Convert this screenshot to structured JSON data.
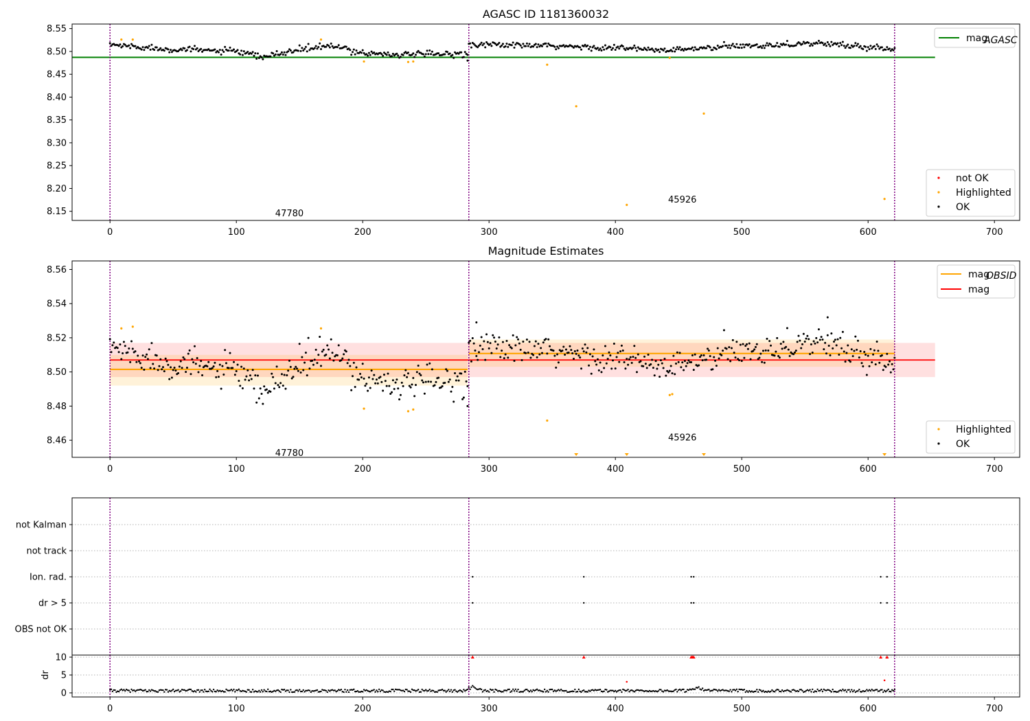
{
  "chart_data": [
    {
      "type": "scatter",
      "title": "AGASC ID 1181360032",
      "xlim": [
        -30,
        720
      ],
      "ylim": [
        8.13,
        8.56
      ],
      "x_ticks": [
        0,
        100,
        200,
        300,
        400,
        500,
        600,
        700
      ],
      "y_ticks": [
        8.15,
        8.2,
        8.25,
        8.3,
        8.35,
        8.4,
        8.45,
        8.5,
        8.55
      ],
      "y_tick_labels": [
        "8.15",
        "8.20",
        "8.25",
        "8.30",
        "8.35",
        "8.40",
        "8.45",
        "8.50",
        "8.55"
      ],
      "obsid_boundaries": [
        0,
        284,
        621
      ],
      "obsid_labels": [
        {
          "text": "47780",
          "x": 142,
          "y": 8.145
        },
        {
          "text": "45926",
          "x": 453,
          "y": 8.175
        }
      ],
      "reference_line": {
        "name": "mag_AGASC",
        "y": 8.487,
        "x_range": [
          -30,
          653
        ],
        "color": "#008000"
      },
      "series": [
        {
          "name": "not OK",
          "color": "#ff0000",
          "x": [],
          "y": []
        },
        {
          "name": "Highlighted",
          "color": "#ffa500",
          "x": [
            9,
            18,
            167,
            201,
            236,
            240,
            346,
            369,
            409,
            443,
            470,
            613
          ],
          "y": [
            8.526,
            8.526,
            8.526,
            8.478,
            8.477,
            8.478,
            8.471,
            8.38,
            8.164,
            8.486,
            8.364,
            8.177
          ]
        },
        {
          "name": "OK",
          "color": "#000000",
          "segments": [
            {
              "x_range": [
                0,
                283
              ],
              "knots_x": [
                0,
                40,
                100,
                120,
                150,
                175,
                200,
                230,
                283
              ],
              "knots_y": [
                8.515,
                8.506,
                8.5,
                8.487,
                8.504,
                8.512,
                8.497,
                8.493,
                8.495
              ]
            },
            {
              "x_range": [
                284,
                621
              ],
              "knots_x": [
                284,
                340,
                400,
                440,
                500,
                560,
                621
              ],
              "knots_y": [
                8.516,
                8.512,
                8.508,
                8.502,
                8.512,
                8.518,
                8.505
              ]
            }
          ],
          "spread": 0.006,
          "outliers": [
            {
              "x": 283,
              "y": 8.48
            }
          ]
        }
      ],
      "legend": [
        {
          "position": "top-right",
          "entries": [
            {
              "label": "mag",
              "subscript": "AGASC",
              "color": "#008000",
              "kind": "line"
            }
          ]
        },
        {
          "position": "bottom-right",
          "entries": [
            {
              "label": "not OK",
              "color": "#ff0000",
              "kind": "dot"
            },
            {
              "label": "Highlighted",
              "color": "#ffa500",
              "kind": "dot"
            },
            {
              "label": "OK",
              "color": "#000000",
              "kind": "dot"
            }
          ]
        }
      ]
    },
    {
      "type": "scatter",
      "title": "Magnitude Estimates",
      "xlim": [
        -30,
        720
      ],
      "ylim": [
        8.45,
        8.565
      ],
      "x_ticks": [
        0,
        100,
        200,
        300,
        400,
        500,
        600,
        700
      ],
      "y_ticks": [
        8.46,
        8.48,
        8.5,
        8.52,
        8.54,
        8.56
      ],
      "y_tick_labels": [
        "8.46",
        "8.48",
        "8.50",
        "8.52",
        "8.54",
        "8.56"
      ],
      "obsid_boundaries": [
        0,
        284,
        621
      ],
      "obsid_labels": [
        {
          "text": "47780",
          "x": 142,
          "y": 8.4525
        },
        {
          "text": "45926",
          "x": 453,
          "y": 8.4615
        }
      ],
      "bands": [
        {
          "x_range": [
            0,
            653
          ],
          "y_range": [
            8.497,
            8.517
          ],
          "color": "#ff0000",
          "opacity": 0.12
        },
        {
          "x_range": [
            0,
            283
          ],
          "y_range": [
            8.492,
            8.51
          ],
          "color": "#ffa500",
          "opacity": 0.15
        },
        {
          "x_range": [
            284,
            621
          ],
          "y_range": [
            8.503,
            8.519
          ],
          "color": "#ffa500",
          "opacity": 0.15
        }
      ],
      "lines": [
        {
          "name": "mag_OBSID",
          "color": "#ffa500",
          "segments": [
            {
              "x_range": [
                0,
                283
              ],
              "y": 8.5015
            },
            {
              "x_range": [
                284,
                621
              ],
              "y": 8.5108
            }
          ]
        },
        {
          "name": "mag",
          "color": "#ff0000",
          "segments": [
            {
              "x_range": [
                0,
                653
              ],
              "y": 8.507
            }
          ]
        }
      ],
      "series": [
        {
          "name": "Highlighted",
          "color": "#ffa500",
          "x": [
            9,
            18,
            167,
            201,
            236,
            240,
            346,
            443,
            445
          ],
          "y": [
            8.5255,
            8.5265,
            8.5255,
            8.4785,
            8.477,
            8.478,
            8.4715,
            8.4865,
            8.487
          ],
          "below_axis_markers_x": [
            369,
            409,
            470,
            613
          ]
        },
        {
          "name": "OK",
          "color": "#000000",
          "segments": [
            {
              "x_range": [
                0,
                283
              ],
              "knots_x": [
                0,
                40,
                100,
                120,
                150,
                175,
                200,
                230,
                283
              ],
              "knots_y": [
                8.515,
                8.506,
                8.5,
                8.487,
                8.504,
                8.512,
                8.497,
                8.493,
                8.495
              ]
            },
            {
              "x_range": [
                284,
                621
              ],
              "knots_x": [
                284,
                340,
                400,
                440,
                500,
                560,
                621
              ],
              "knots_y": [
                8.516,
                8.512,
                8.508,
                8.502,
                8.512,
                8.518,
                8.505
              ]
            }
          ],
          "spread": 0.006,
          "outliers": [
            {
              "x": 283,
              "y": 8.48
            },
            {
              "x": 290,
              "y": 8.529
            },
            {
              "x": 568,
              "y": 8.532
            }
          ]
        }
      ],
      "legend": [
        {
          "position": "top-right",
          "entries": [
            {
              "label": "mag",
              "subscript": "OBSID",
              "color": "#ffa500",
              "kind": "line"
            },
            {
              "label": "mag",
              "subscript": "",
              "color": "#ff0000",
              "kind": "line"
            }
          ]
        },
        {
          "position": "bottom-right",
          "entries": [
            {
              "label": "Highlighted",
              "color": "#ffa500",
              "kind": "dot"
            },
            {
              "label": "OK",
              "color": "#000000",
              "kind": "dot"
            }
          ]
        }
      ]
    },
    {
      "type": "scatter",
      "title": "",
      "xlim": [
        -30,
        720
      ],
      "categories": [
        "not Kalman",
        "not track",
        "Ion. rad.",
        "dr > 5",
        "OBS not OK"
      ],
      "obsid_boundaries": [
        0,
        284,
        621
      ],
      "flag_points": {
        "Ion. rad.": [
          287,
          375,
          460,
          462,
          610,
          615
        ],
        "dr > 5": [
          287,
          375,
          460,
          462,
          610,
          615
        ]
      }
    },
    {
      "type": "scatter",
      "title": "",
      "ylabel": "dr",
      "xlim": [
        -30,
        720
      ],
      "ylim": [
        -0.5,
        10.5
      ],
      "x_ticks": [
        0,
        100,
        200,
        300,
        400,
        500,
        600,
        700
      ],
      "x_tick_labels": [
        "0",
        "100",
        "200",
        "300",
        "400",
        "500",
        "600",
        "700"
      ],
      "y_ticks": [
        0,
        5,
        10
      ],
      "y_tick_labels": [
        "0",
        "5",
        "10"
      ],
      "obsid_boundaries": [
        0,
        284,
        621
      ],
      "series": [
        {
          "name": "OK",
          "color": "#000000",
          "baseline_x_range": [
            0,
            621
          ],
          "baseline_mean": 0.6,
          "bumps": [
            {
              "x": 287,
              "y": 1.6
            },
            {
              "x": 465,
              "y": 1.6
            }
          ]
        },
        {
          "name": "not OK",
          "color": "#ff0000",
          "x": [
            287,
            375,
            409,
            460,
            461,
            462,
            610,
            613,
            615
          ],
          "y": [
            10,
            10,
            3.1,
            10,
            10,
            10,
            10,
            3.5,
            10
          ]
        }
      ]
    }
  ]
}
